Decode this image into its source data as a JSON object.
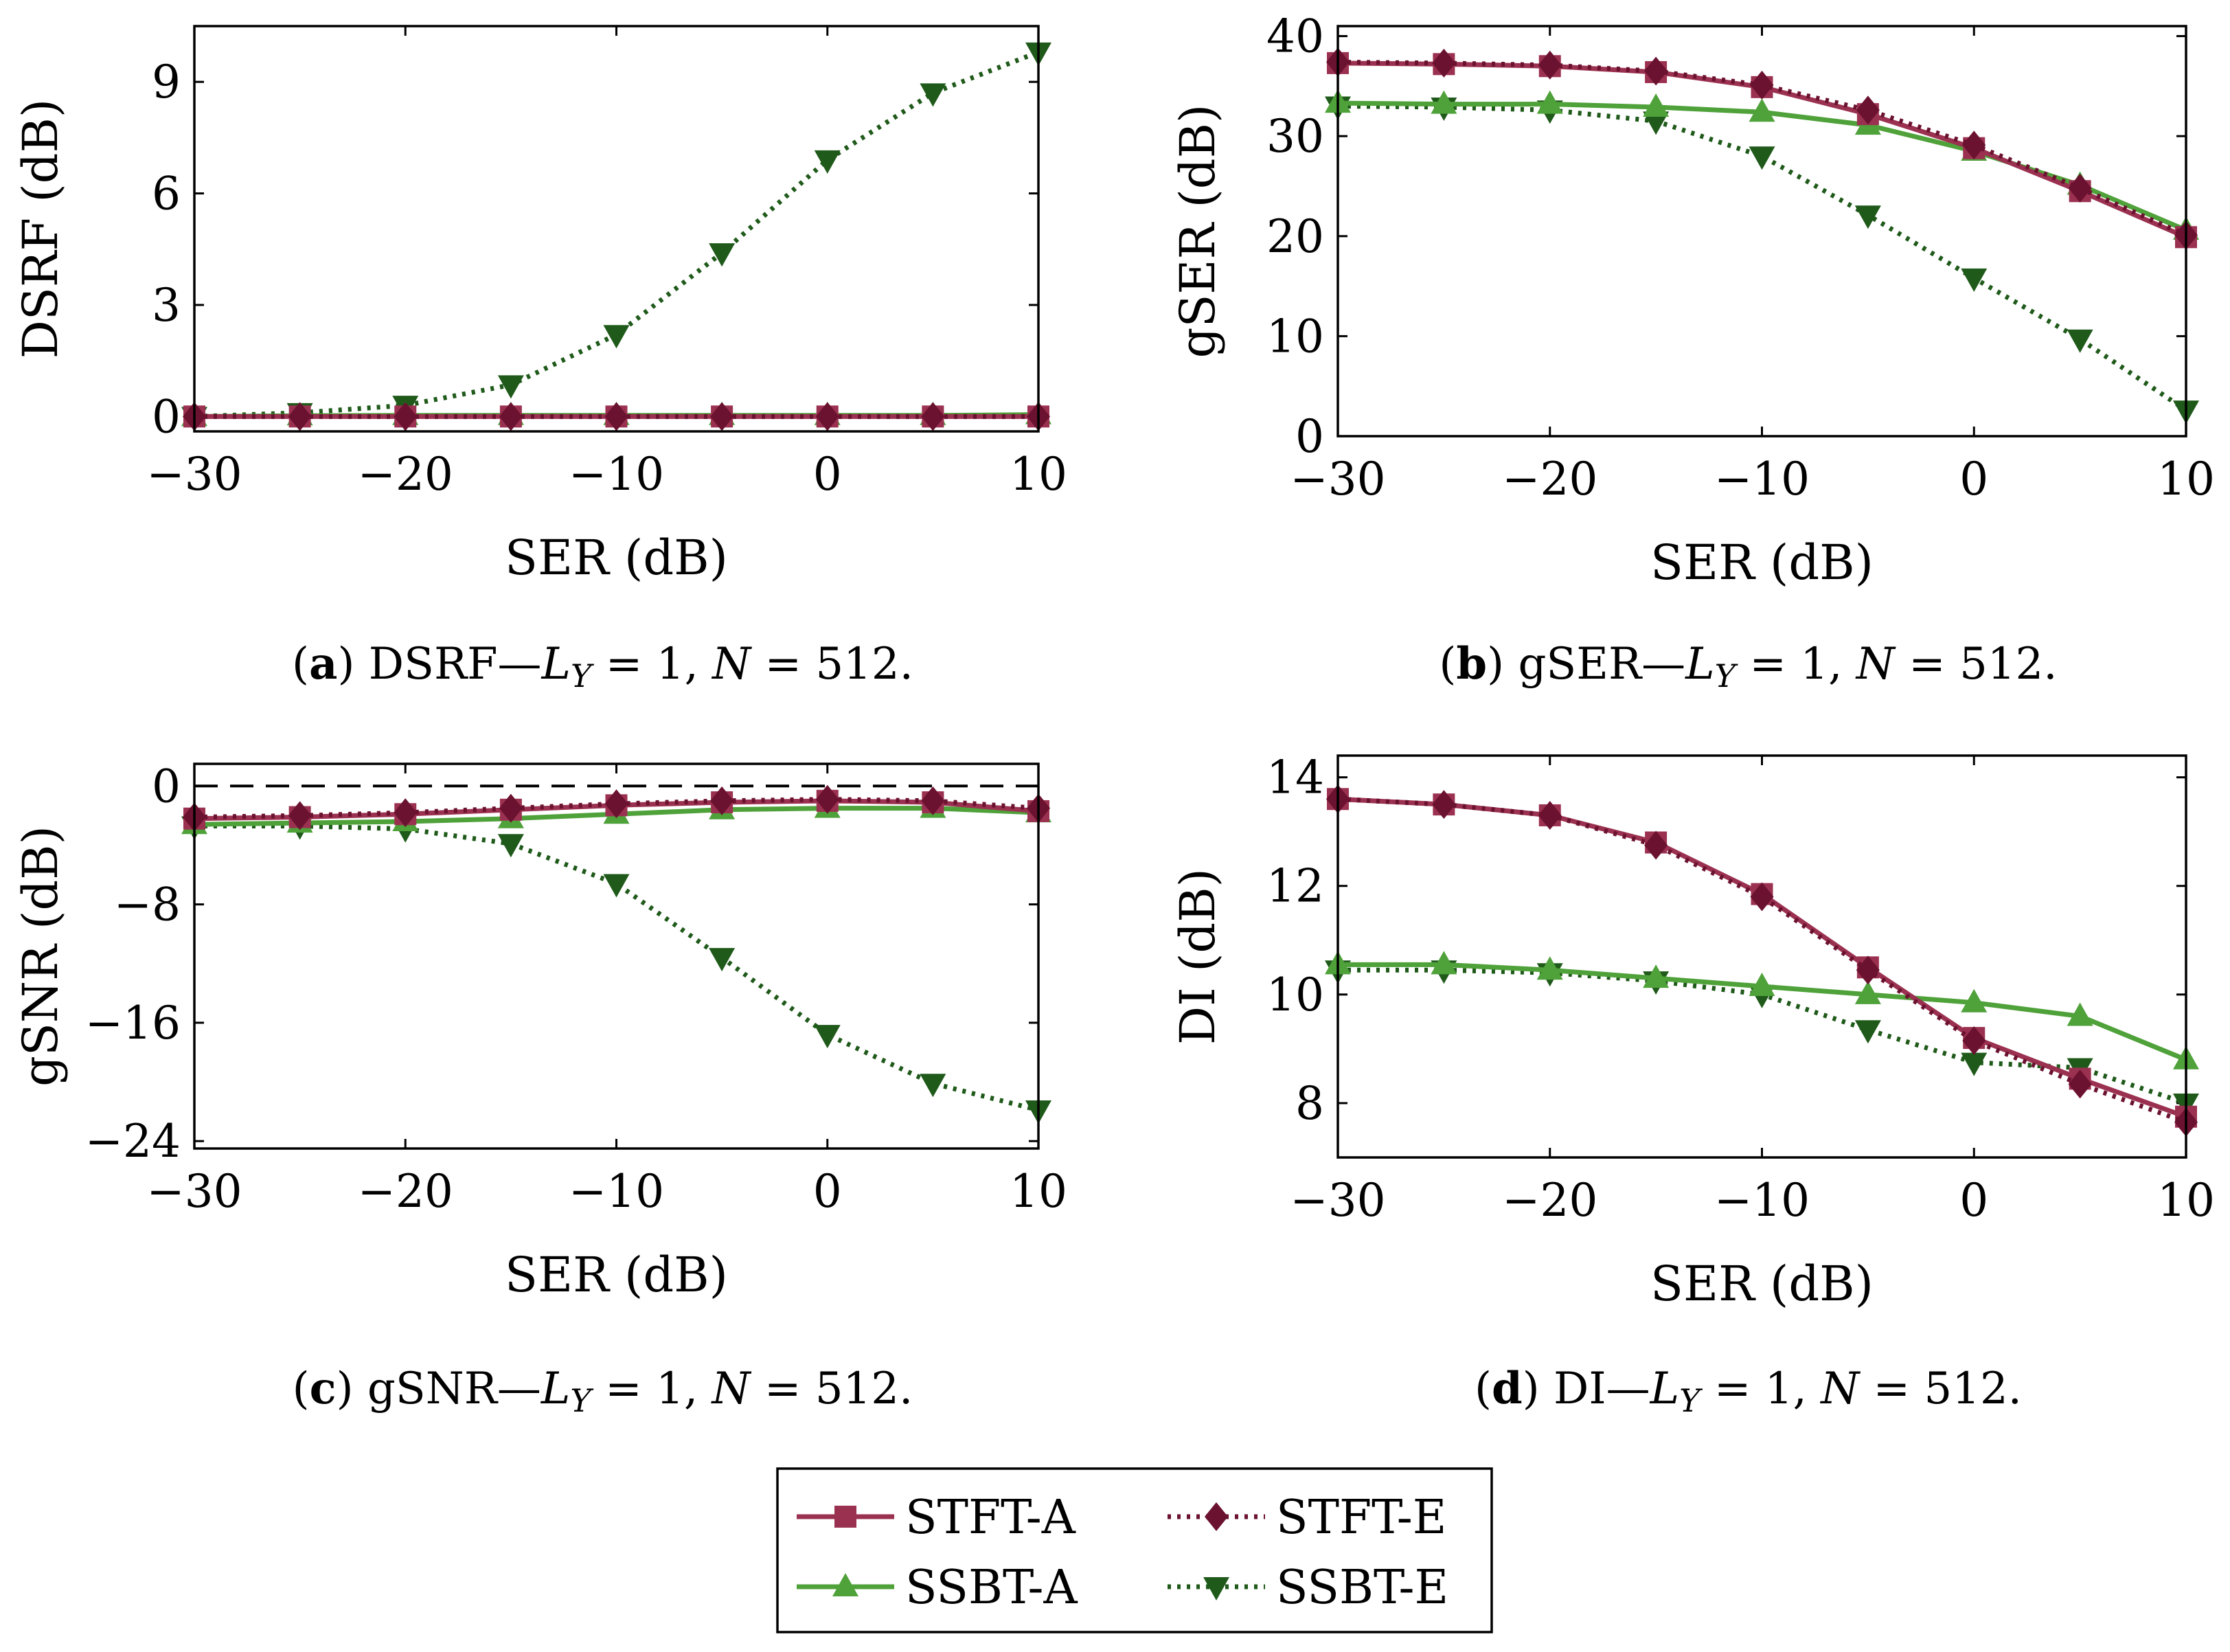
{
  "colors": {
    "STFT-A": "#9b3150",
    "STFT-E": "#6b1230",
    "SSBT-A": "#4fa13a",
    "SSBT-E": "#1f5a1a"
  },
  "legend": {
    "entries": [
      {
        "name": "STFT-A",
        "marker": "square",
        "style": "solid"
      },
      {
        "name": "STFT-E",
        "marker": "diamond",
        "style": "dotted"
      },
      {
        "name": "SSBT-A",
        "marker": "triangle-up",
        "style": "solid"
      },
      {
        "name": "SSBT-E",
        "marker": "triangle-down",
        "style": "dotted"
      }
    ]
  },
  "chart_data": [
    {
      "id": "a",
      "type": "line",
      "caption": {
        "letter": "a",
        "metric": "DSRF—",
        "ly_label": "L",
        "ly_sub": "Y",
        "ly_value": " = 1, ",
        "n_label": "N",
        "n_value": " = 512."
      },
      "xlabel": "SER (dB)",
      "ylabel": "DSRF (dB)",
      "xlim": [
        -30,
        10
      ],
      "ylim": [
        -0.4,
        10.5
      ],
      "xticks": [
        -30,
        -20,
        -10,
        0,
        10
      ],
      "xtick_labels": [
        "−30",
        "−20",
        "−10",
        "0",
        "10"
      ],
      "yticks": [
        0,
        3,
        6,
        9
      ],
      "ytick_labels": [
        "0",
        "3",
        "6",
        "9"
      ],
      "x": [
        -30,
        -25,
        -20,
        -15,
        -10,
        -5,
        0,
        5,
        10
      ],
      "series": [
        {
          "name": "STFT-A",
          "values": [
            0,
            0,
            0,
            0,
            0,
            0,
            0,
            0,
            0
          ]
        },
        {
          "name": "STFT-E",
          "values": [
            0,
            0,
            0,
            0,
            0,
            0,
            0,
            0,
            0
          ]
        },
        {
          "name": "SSBT-A",
          "values": [
            0,
            0.02,
            0.03,
            0.03,
            0.03,
            0.03,
            0.03,
            0.03,
            0.05
          ]
        },
        {
          "name": "SSBT-E",
          "values": [
            0,
            0.1,
            0.3,
            0.85,
            2.2,
            4.4,
            6.9,
            8.7,
            9.8
          ]
        }
      ]
    },
    {
      "id": "b",
      "type": "line",
      "caption": {
        "letter": "b",
        "metric": "gSER—",
        "ly_label": "L",
        "ly_sub": "Y",
        "ly_value": " = 1, ",
        "n_label": "N",
        "n_value": " = 512."
      },
      "xlabel": "SER (dB)",
      "ylabel": "gSER (dB)",
      "xlim": [
        -30,
        10
      ],
      "ylim": [
        0,
        41
      ],
      "xticks": [
        -30,
        -20,
        -10,
        0,
        10
      ],
      "xtick_labels": [
        "−30",
        "−20",
        "−10",
        "0",
        "10"
      ],
      "yticks": [
        0,
        10,
        20,
        30,
        40
      ],
      "ytick_labels": [
        "0",
        "10",
        "20",
        "30",
        "40"
      ],
      "x": [
        -30,
        -25,
        -20,
        -15,
        -10,
        -5,
        0,
        5,
        10
      ],
      "series": [
        {
          "name": "STFT-A",
          "values": [
            37.3,
            37.2,
            37.0,
            36.4,
            34.9,
            32.2,
            28.8,
            24.5,
            19.9
          ]
        },
        {
          "name": "STFT-E",
          "values": [
            37.4,
            37.3,
            37.1,
            36.5,
            35.1,
            32.6,
            29.1,
            24.8,
            20.1
          ]
        },
        {
          "name": "SSBT-A",
          "values": [
            33.3,
            33.2,
            33.2,
            32.9,
            32.4,
            31.1,
            28.5,
            25.1,
            20.6
          ]
        },
        {
          "name": "SSBT-E",
          "values": [
            33.0,
            32.9,
            32.6,
            31.5,
            28.0,
            22.1,
            15.8,
            9.7,
            2.6
          ]
        }
      ]
    },
    {
      "id": "c",
      "type": "line",
      "caption": {
        "letter": "c",
        "metric": "gSNR—",
        "ly_label": "L",
        "ly_sub": "Y",
        "ly_value": " = 1, ",
        "n_label": "N",
        "n_value": " = 512."
      },
      "xlabel": "SER (dB)",
      "ylabel": "gSNR (dB)",
      "xlim": [
        -30,
        10
      ],
      "ylim": [
        -24.5,
        1.5
      ],
      "xticks": [
        -30,
        -20,
        -10,
        0,
        10
      ],
      "xtick_labels": [
        "−30",
        "−20",
        "−10",
        "0",
        "10"
      ],
      "yticks": [
        0,
        -8,
        -16,
        -24
      ],
      "ytick_labels": [
        "0",
        "−8",
        "−16",
        "−24"
      ],
      "reference_line": 0,
      "x": [
        -30,
        -25,
        -20,
        -15,
        -10,
        -5,
        0,
        5,
        10
      ],
      "series": [
        {
          "name": "STFT-A",
          "values": [
            -2.2,
            -2.1,
            -1.9,
            -1.6,
            -1.3,
            -1.1,
            -1.0,
            -1.1,
            -1.7
          ]
        },
        {
          "name": "STFT-E",
          "values": [
            -2.1,
            -2.0,
            -1.8,
            -1.5,
            -1.2,
            -1.0,
            -0.9,
            -1.0,
            -1.5
          ]
        },
        {
          "name": "SSBT-A",
          "values": [
            -2.6,
            -2.5,
            -2.4,
            -2.2,
            -1.9,
            -1.6,
            -1.5,
            -1.5,
            -1.8
          ]
        },
        {
          "name": "SSBT-E",
          "values": [
            -2.7,
            -2.7,
            -2.9,
            -3.9,
            -6.6,
            -11.6,
            -16.8,
            -20.1,
            -21.9
          ]
        }
      ]
    },
    {
      "id": "d",
      "type": "line",
      "caption": {
        "letter": "d",
        "metric": "DI—",
        "ly_label": "L",
        "ly_sub": "Y",
        "ly_value": " = 1, ",
        "n_label": "N",
        "n_value": " = 512."
      },
      "xlabel": "SER (dB)",
      "ylabel": "DI (dB)",
      "xlim": [
        -30,
        10
      ],
      "ylim": [
        7.0,
        14.4
      ],
      "xticks": [
        -30,
        -20,
        -10,
        0,
        10
      ],
      "xtick_labels": [
        "−30",
        "−20",
        "−10",
        "0",
        "10"
      ],
      "yticks": [
        8,
        10,
        12,
        14
      ],
      "ytick_labels": [
        "8",
        "10",
        "12",
        "14"
      ],
      "x": [
        -30,
        -25,
        -20,
        -15,
        -10,
        -5,
        0,
        5,
        10
      ],
      "series": [
        {
          "name": "STFT-A",
          "values": [
            13.6,
            13.5,
            13.3,
            12.8,
            11.85,
            10.5,
            9.2,
            8.45,
            7.75
          ]
        },
        {
          "name": "STFT-E",
          "values": [
            13.6,
            13.5,
            13.3,
            12.75,
            11.8,
            10.45,
            9.15,
            8.35,
            7.65
          ]
        },
        {
          "name": "SSBT-A",
          "values": [
            10.55,
            10.55,
            10.45,
            10.3,
            10.15,
            10.0,
            9.85,
            9.6,
            8.8
          ]
        },
        {
          "name": "SSBT-E",
          "values": [
            10.45,
            10.45,
            10.4,
            10.25,
            10.0,
            9.35,
            8.75,
            8.65,
            8.0
          ]
        }
      ]
    }
  ]
}
